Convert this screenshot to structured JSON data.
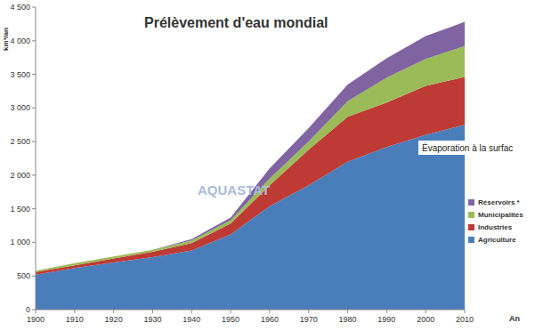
{
  "chart_data": {
    "type": "area",
    "title": "Prélèvement d'eau mondial",
    "stacked": true,
    "x_label": "An",
    "y_label": "km³/an",
    "annotations": [
      "AQUASTAT",
      "Évaporation à la surfac"
    ],
    "legend": "right",
    "grid": false,
    "x": [
      1900,
      1910,
      1920,
      1930,
      1940,
      1950,
      1960,
      1970,
      1980,
      1990,
      2000,
      2010
    ],
    "xlim": [
      1900,
      2010
    ],
    "xticks": [
      1900,
      1910,
      1920,
      1930,
      1940,
      1950,
      1960,
      1970,
      1980,
      1990,
      2000,
      2010
    ],
    "ylim": [
      0,
      4500
    ],
    "yticks": [
      0,
      500,
      {
        "value": 1000,
        "label": "1 000"
      },
      {
        "value": 1500,
        "label": "1 500"
      },
      {
        "value": 2000,
        "label": "2 000"
      },
      {
        "value": 2500,
        "label": "2 500"
      },
      {
        "value": 3000,
        "label": "3 000"
      },
      {
        "value": 3500,
        "label": "3 500"
      },
      {
        "value": 4000,
        "label": "4 000"
      },
      {
        "value": 4500,
        "label": "4 500"
      }
    ],
    "series": [
      {
        "name": "Agriculture",
        "color": "#4a7ebb",
        "values": [
          520,
          620,
          700,
          780,
          880,
          1120,
          1540,
          1850,
          2200,
          2420,
          2600,
          2750
        ]
      },
      {
        "name": "Industries",
        "color": "#be3a34",
        "values": [
          40,
          40,
          60,
          80,
          110,
          160,
          310,
          530,
          670,
          660,
          730,
          710
        ]
      },
      {
        "name": "Municipalités",
        "color": "#9bbb59",
        "values": [
          20,
          30,
          30,
          30,
          40,
          50,
          100,
          120,
          230,
          370,
          400,
          460
        ]
      },
      {
        "name": "Réservoirs *",
        "color": "#8064a2",
        "values": [
          0,
          0,
          0,
          0,
          20,
          40,
          150,
          200,
          250,
          290,
          340,
          360
        ]
      }
    ]
  }
}
